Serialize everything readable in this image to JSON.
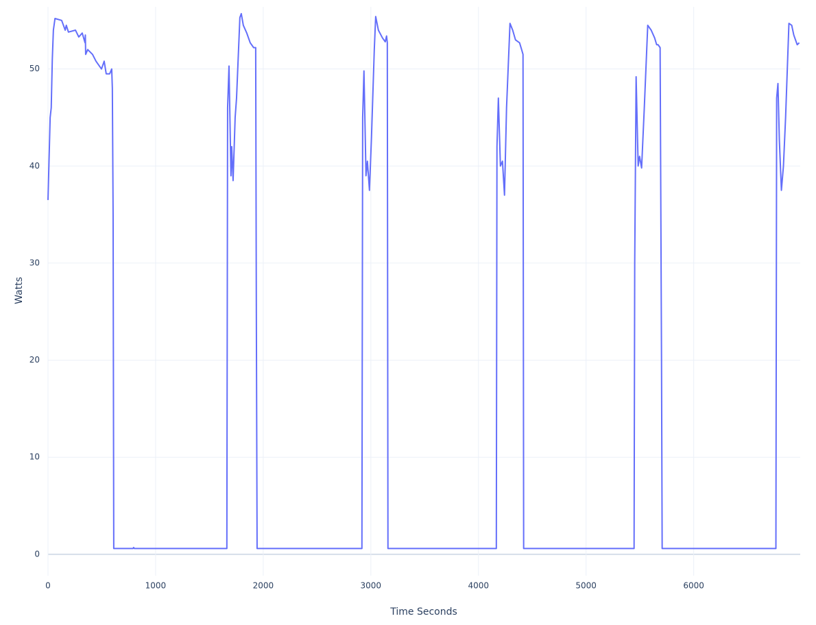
{
  "chart_data": {
    "type": "line",
    "x_label": "Time Seconds",
    "y_label": "Watts",
    "x": [
      0,
      20,
      30,
      40,
      50,
      65,
      127,
      160,
      170,
      190,
      255,
      286,
      318,
      344,
      347,
      350,
      369,
      414,
      446,
      497,
      522,
      541,
      573,
      592,
      598,
      605,
      611,
      790,
      796,
      802,
      1662,
      1669,
      1682,
      1700,
      1707,
      1720,
      1739,
      1752,
      1783,
      1796,
      1815,
      1847,
      1879,
      1911,
      1930,
      1936,
      1943,
      2917,
      2924,
      2936,
      2955,
      2968,
      2987,
      3006,
      3032,
      3045,
      3070,
      3108,
      3134,
      3146,
      3153,
      3159,
      4166,
      4172,
      4185,
      4204,
      4223,
      4242,
      4261,
      4293,
      4318,
      4344,
      4382,
      4401,
      4414,
      4420,
      5446,
      5452,
      5465,
      5484,
      5497,
      5516,
      5541,
      5573,
      5605,
      5637,
      5656,
      5669,
      5688,
      5701,
      5707,
      6764,
      6771,
      6783,
      6796,
      6815,
      6834,
      6854,
      6885,
      6911,
      6930,
      6962,
      6981
    ],
    "series": [
      {
        "name": "Watts",
        "color": "#636efa",
        "values": [
          36.5,
          45,
          46,
          51,
          54,
          55.2,
          55,
          54,
          54.5,
          53.8,
          54,
          53.3,
          53.7,
          52.7,
          53.5,
          51.5,
          52,
          51.5,
          50.8,
          50,
          50.8,
          49.5,
          49.5,
          50,
          48,
          35,
          0.6,
          0.6,
          0.7,
          0.6,
          0.6,
          46,
          50.3,
          39,
          42,
          38.5,
          45,
          47,
          55.3,
          55.7,
          54.5,
          53.7,
          52.7,
          52.2,
          52.2,
          25,
          0.6,
          0.6,
          45,
          49.8,
          39,
          40.5,
          37.5,
          43,
          52,
          55.4,
          54,
          53.2,
          52.8,
          53.4,
          52.7,
          0.6,
          0.6,
          42,
          47,
          40,
          40.5,
          37,
          46,
          54.7,
          54,
          53,
          52.7,
          52,
          51.5,
          0.6,
          0.6,
          30,
          49.2,
          40,
          41,
          39.8,
          46,
          54.5,
          54,
          53.2,
          52.5,
          52.5,
          52.2,
          20,
          0.6,
          0.6,
          47,
          48.5,
          42.7,
          37.5,
          40,
          45,
          54.7,
          54.5,
          53.5,
          52.5,
          52.7
        ]
      }
    ],
    "xlim": [
      0,
      6990
    ],
    "ylim": [
      -2.2,
      56.4
    ],
    "xticks": [
      0,
      1000,
      2000,
      3000,
      4000,
      5000,
      6000
    ],
    "yticks": [
      0,
      10,
      20,
      30,
      40,
      50
    ],
    "grid": true
  }
}
